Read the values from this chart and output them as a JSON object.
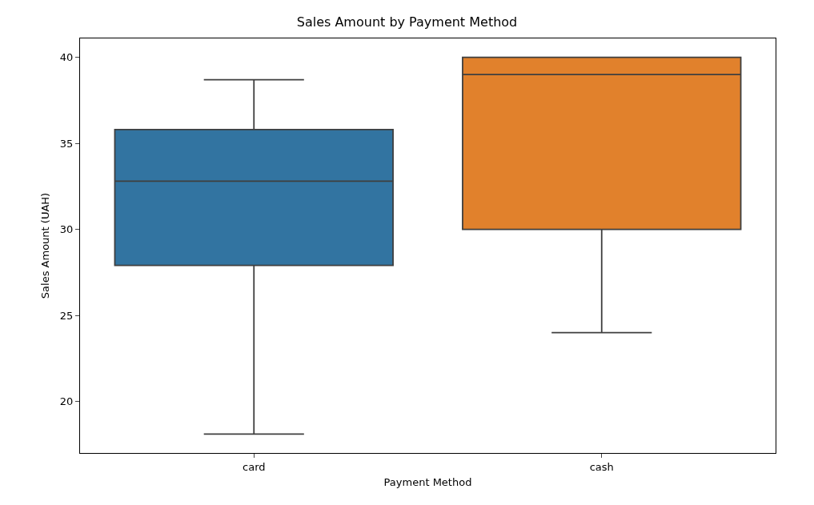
{
  "chart_data": {
    "type": "box",
    "title": "Sales Amount by Payment Method",
    "xlabel": "Payment Method",
    "ylabel": "Sales Amount (UAH)",
    "categories": [
      "card",
      "cash"
    ],
    "colors": [
      "#3274a1",
      "#e1812c"
    ],
    "boxes": [
      {
        "low": 18.1,
        "q1": 27.9,
        "median": 32.8,
        "q3": 35.8,
        "high": 38.7
      },
      {
        "low": 24.0,
        "q1": 30.0,
        "median": 39.0,
        "q3": 40.0,
        "high": 40.0
      }
    ],
    "ylim": [
      17.0,
      41.1
    ],
    "yticks": [
      20,
      25,
      30,
      35,
      40
    ],
    "grid": false,
    "legend": false
  }
}
